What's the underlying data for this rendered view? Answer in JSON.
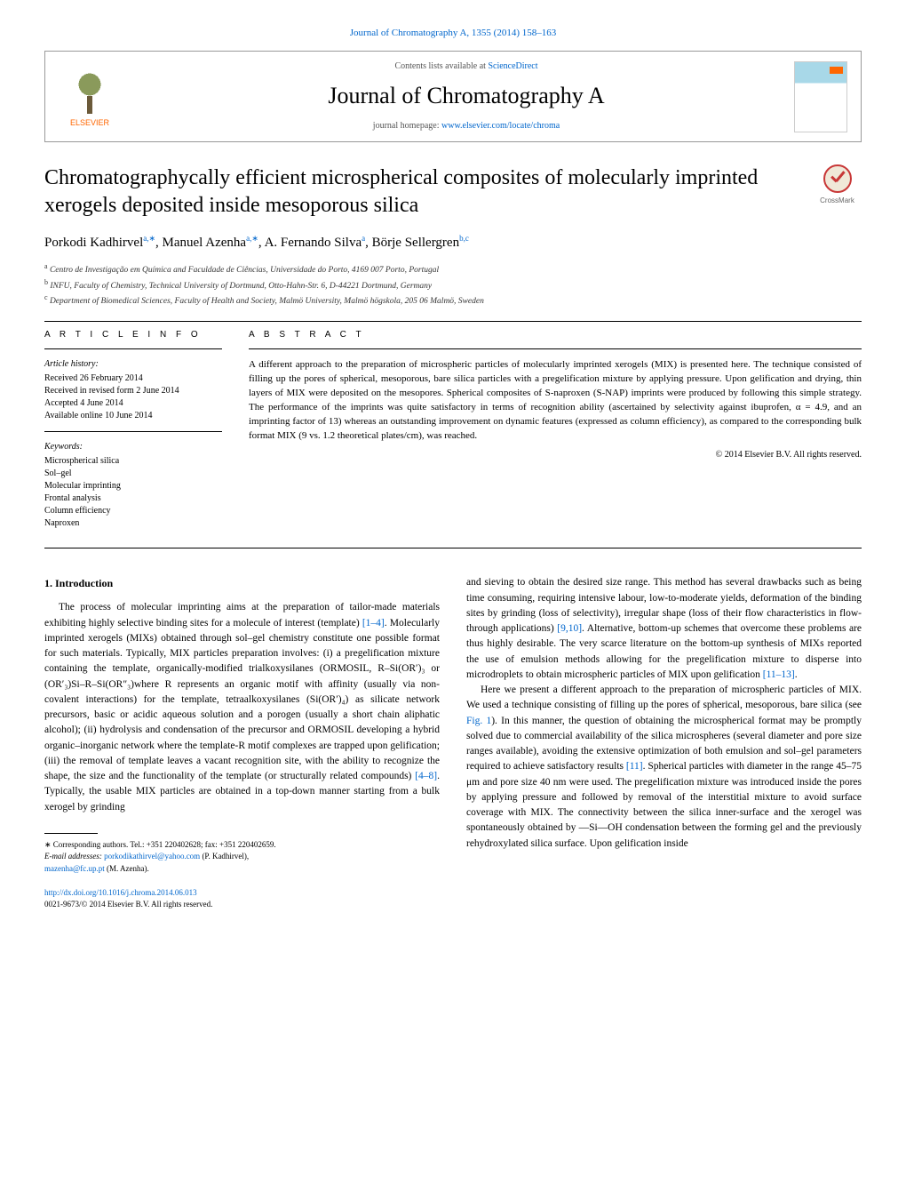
{
  "journal_ref": "Journal of Chromatography A, 1355 (2014) 158–163",
  "header": {
    "elsevier": "ELSEVIER",
    "contents_prefix": "Contents lists available at ",
    "contents_link": "ScienceDirect",
    "journal_name": "Journal of Chromatography A",
    "homepage_prefix": "journal homepage: ",
    "homepage_link": "www.elsevier.com/locate/chroma"
  },
  "title": "Chromatographycally efficient microspherical composites of molecularly imprinted xerogels deposited inside mesoporous silica",
  "crossmark": "CrossMark",
  "authors_html": "Porkodi Kadhirvel<sup>a,∗</sup>, Manuel Azenha<sup>a,∗</sup>, A. Fernando Silva<sup>a</sup>, Börje Sellergren<sup>b,c</sup>",
  "affiliations": [
    {
      "sup": "a",
      "text": "Centro de Investigação em Química and Faculdade de Ciências, Universidade do Porto, 4169 007 Porto, Portugal"
    },
    {
      "sup": "b",
      "text": "INFU, Faculty of Chemistry, Technical University of Dortmund, Otto-Hahn-Str. 6, D-44221 Dortmund, Germany"
    },
    {
      "sup": "c",
      "text": "Department of Biomedical Sciences, Faculty of Health and Society, Malmö University, Malmö högskola, 205 06 Malmö, Sweden"
    }
  ],
  "info": {
    "label": "A R T I C L E   I N F O",
    "history_label": "Article history:",
    "history": [
      "Received 26 February 2014",
      "Received in revised form 2 June 2014",
      "Accepted 4 June 2014",
      "Available online 10 June 2014"
    ],
    "keywords_label": "Keywords:",
    "keywords": [
      "Microspherical silica",
      "Sol–gel",
      "Molecular imprinting",
      "Frontal analysis",
      "Column efficiency",
      "Naproxen"
    ]
  },
  "abstract": {
    "label": "A B S T R A C T",
    "text": "A different approach to the preparation of microspheric particles of molecularly imprinted xerogels (MIX) is presented here. The technique consisted of filling up the pores of spherical, mesoporous, bare silica particles with a pregelification mixture by applying pressure. Upon gelification and drying, thin layers of MIX were deposited on the mesopores. Spherical composites of S-naproxen (S-NAP) imprints were produced by following this simple strategy. The performance of the imprints was quite satisfactory in terms of recognition ability (ascertained by selectivity against ibuprofen, α = 4.9, and an imprinting factor of 13) whereas an outstanding improvement on dynamic features (expressed as column efficiency), as compared to the corresponding bulk format MIX (9 vs. 1.2 theoretical plates/cm), was reached.",
    "copyright": "© 2014 Elsevier B.V. All rights reserved."
  },
  "body": {
    "heading": "1. Introduction",
    "col1_p1a": "The process of molecular imprinting aims at the preparation of tailor-made materials exhibiting highly selective binding sites for a molecule of interest (template) ",
    "ref1": "[1–4]",
    "col1_p1b": ". Molecularly imprinted xerogels (MIXs) obtained through sol–gel chemistry constitute one possible format for such materials. Typically, MIX particles preparation involves: (i) a pregelification mixture containing the template, organically-modified trialkoxysilanes (ORMOSIL, R–Si(OR′)₃ or (OR′₃)Si–R–Si(OR″₃)where R represents an organic motif with affinity (usually via non-covalent interactions) for the template, tetraalkoxysilanes (Si(OR′)₄) as silicate network precursors, basic or acidic aqueous solution and a porogen (usually a short chain aliphatic alcohol); (ii) hydrolysis and condensation of the precursor and ORMOSIL developing a hybrid organic–inorganic network where the template-R motif complexes are trapped upon gelification; (iii) the removal of template leaves a vacant recognition site, with the ability to recognize the shape, the size and the functionality of the template (or structurally related compounds) ",
    "ref2": "[4–8]",
    "col1_p1c": ". Typically, the usable MIX particles are obtained in a top-down manner starting from a bulk xerogel by grinding",
    "col2_p1a": "and sieving to obtain the desired size range. This method has several drawbacks such as being time consuming, requiring intensive labour, low-to-moderate yields, deformation of the binding sites by grinding (loss of selectivity), irregular shape (loss of their flow characteristics in flow-through applications) ",
    "ref3": "[9,10]",
    "col2_p1b": ". Alternative, bottom-up schemes that overcome these problems are thus highly desirable. The very scarce literature on the bottom-up synthesis of MIXs reported the use of emulsion methods allowing for the pregelification mixture to disperse into microdroplets to obtain microspheric particles of MIX upon gelification ",
    "ref4": "[11–13]",
    "col2_p1c": ".",
    "col2_p2a": "Here we present a different approach to the preparation of microspheric particles of MIX. We used a technique consisting of filling up the pores of spherical, mesoporous, bare silica (see ",
    "ref5": "Fig. 1",
    "col2_p2b": "). In this manner, the question of obtaining the microspherical format may be promptly solved due to commercial availability of the silica microspheres (several diameter and pore size ranges available), avoiding the extensive optimization of both emulsion and sol–gel parameters required to achieve satisfactory results ",
    "ref6": "[11]",
    "col2_p2c": ". Spherical particles with diameter in the range 45–75 μm and pore size 40 nm were used. The pregelification mixture was introduced inside the pores by applying pressure and followed by removal of the interstitial mixture to avoid surface coverage with MIX. The connectivity between the silica inner-surface and the xerogel was spontaneously obtained by —Si—OH condensation between the forming gel and the previously rehydroxylated silica surface. Upon gelification inside"
  },
  "footnote": {
    "corr": "∗ Corresponding authors. Tel.: +351 220402628; fax: +351 220402659.",
    "email_label": "E-mail addresses: ",
    "email1": "porkodikathirvel@yahoo.com",
    "email1_who": " (P. Kadhirvel),",
    "email2": "mazenha@fc.up.pt",
    "email2_who": " (M. Azenha)."
  },
  "footer": {
    "doi": "http://dx.doi.org/10.1016/j.chroma.2014.06.013",
    "issn": "0021-9673/© 2014 Elsevier B.V. All rights reserved."
  },
  "colors": {
    "link": "#0066cc",
    "elsevier_orange": "#ff6600",
    "text": "#000000"
  }
}
